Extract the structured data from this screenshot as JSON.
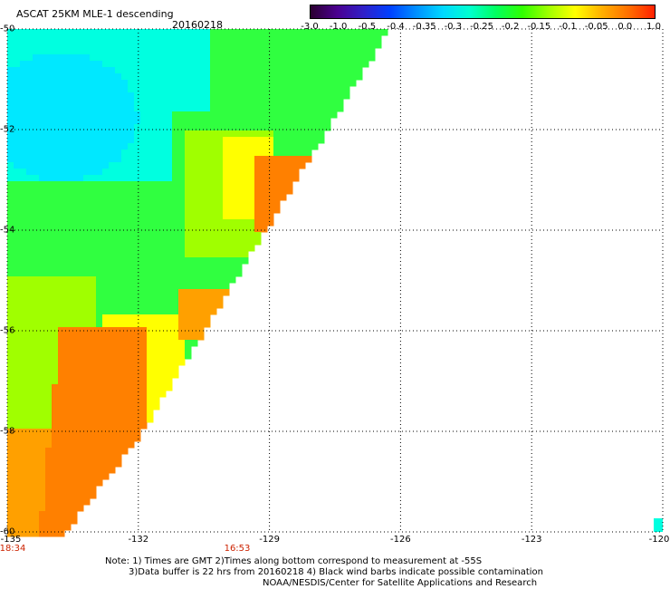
{
  "header": {
    "title": "ASCAT 25KM MLE-1 descending",
    "date": "20160218"
  },
  "colorbar": {
    "labels": [
      "-3.0",
      "-1.0",
      "-0.5",
      "-0.4",
      "-0.35",
      "-0.3",
      "-0.25",
      "-0.2",
      "-0.15",
      "-0.1",
      "-0.05",
      "0.0",
      "1.0"
    ],
    "colors": [
      "#2b0030",
      "#4b0090",
      "#3020c8",
      "#0040ff",
      "#0090ff",
      "#00d8ff",
      "#00ffd0",
      "#00ff60",
      "#30ff00",
      "#a0ff00",
      "#ffff00",
      "#ffb000",
      "#ff7000",
      "#ff2000"
    ]
  },
  "axes": {
    "lat_labels": [
      "-50",
      "-52",
      "-54",
      "-56",
      "-58",
      "-60"
    ],
    "lon_labels": [
      "-135",
      "-132",
      "-129",
      "-126",
      "-123",
      "-120"
    ],
    "lat_range": [
      -50,
      -60
    ],
    "lon_range": [
      -135,
      -120
    ]
  },
  "times": {
    "left": "18:34",
    "right": "16:53"
  },
  "notes": {
    "line1": "Note: 1) Times are GMT 2)Times along bottom correspond to measurement at -55S",
    "line2": "3)Data buffer is 22 hrs from 20160218 4) Black wind barbs indicate possible contamination",
    "line3": "NOAA/NESDIS/Center for Satellite Applications and Research"
  },
  "map_colors": {
    "cyan": "#00ffe0",
    "blue_cyan": "#00e8ff",
    "green": "#30ff40",
    "lime": "#a0ff00",
    "yellow": "#ffff00",
    "orange": "#ffa000",
    "dark_orange": "#ff8000",
    "grid": "#000000"
  }
}
